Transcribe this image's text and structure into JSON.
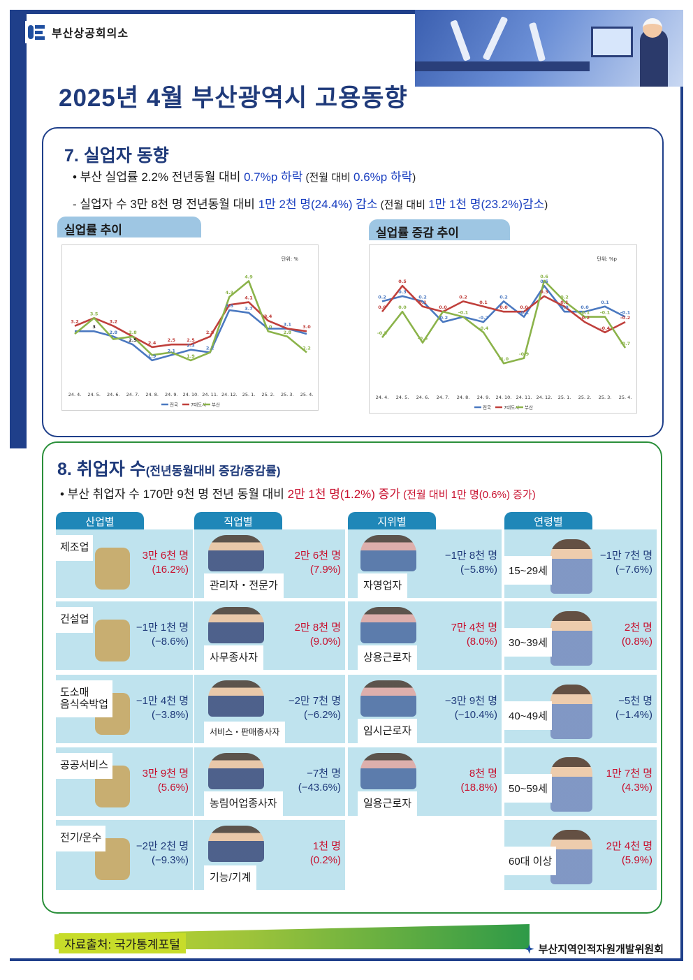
{
  "header": {
    "org": "부산상공회의소",
    "title": "2025년 4월 부산광역시 고용동향"
  },
  "section7": {
    "title": "7. 실업자 동향",
    "line1": {
      "a": "• 부산 실업률 2.2% 전년동월 대비 ",
      "b": "0.7%p 하락",
      "c": " (전월 대비 ",
      "d": "0.6%p 하락",
      "e": ")"
    },
    "line2": {
      "a": "- 실업자 수 3만 8천 명 전년동월 대비 ",
      "b": "1만 2천 명(24.4%) 감소",
      "c": " (전월 대비 ",
      "d": "1만 1천 명(23.2%)감소",
      "e": ")"
    },
    "chart1_tab": "실업률 추이",
    "chart2_tab": "실업률 증감 추이"
  },
  "chart_data": [
    {
      "type": "line",
      "categories": [
        "24. 4.",
        "24. 5.",
        "24. 6.",
        "24. 7.",
        "24. 8.",
        "24. 9.",
        "24. 10.",
        "24. 11.",
        "24. 12.",
        "25. 1.",
        "25. 2.",
        "25. 3.",
        "25. 4."
      ],
      "unit": "단위: %",
      "series": [
        {
          "name": "전국",
          "color": "#4a78c0",
          "values": [
            3.0,
            3.0,
            2.8,
            2.5,
            1.9,
            2.1,
            2.3,
            2.2,
            3.8,
            3.7,
            3.1,
            3.1,
            2.9
          ]
        },
        {
          "name": "7대도시",
          "color": "#c0403c",
          "values": [
            3.2,
            3.5,
            3.2,
            2.8,
            2.4,
            2.5,
            2.5,
            2.8,
            4.0,
            4.1,
            3.4,
            3.1,
            3.0
          ]
        },
        {
          "name": "부산",
          "color": "#8bb34a",
          "values": [
            2.9,
            3.5,
            2.7,
            2.8,
            2.1,
            2.2,
            1.9,
            2.2,
            4.3,
            4.9,
            3.0,
            2.8,
            2.2
          ]
        }
      ],
      "labels": [
        {
          "i": 0,
          "v": 3.2,
          "t": "3.2",
          "c": "#c0403c"
        },
        {
          "i": 1,
          "v": 3.5,
          "t": "3.5",
          "c": "#8bb34a"
        },
        {
          "i": 1,
          "v": 3.0,
          "t": "3",
          "c": "#222"
        },
        {
          "i": 2,
          "v": 3.2,
          "t": "3.2",
          "c": "#c0403c"
        },
        {
          "i": 2,
          "v": 2.8,
          "t": "2.8",
          "c": "#4a78c0"
        },
        {
          "i": 3,
          "v": 2.8,
          "t": "2.8",
          "c": "#8bb34a"
        },
        {
          "i": 3,
          "v": 2.5,
          "t": "2.5",
          "c": "#222"
        },
        {
          "i": 4,
          "v": 2.4,
          "t": "2.4",
          "c": "#c0403c"
        },
        {
          "i": 4,
          "v": 1.9,
          "t": "1.9",
          "c": "#4a78c0"
        },
        {
          "i": 5,
          "v": 2.5,
          "t": "2.5",
          "c": "#c0403c"
        },
        {
          "i": 5,
          "v": 2.1,
          "t": "2.1",
          "c": "#4a78c0"
        },
        {
          "i": 6,
          "v": 2.5,
          "t": "2.5",
          "c": "#c0403c"
        },
        {
          "i": 6,
          "v": 2.3,
          "t": "2.3",
          "c": "#4a78c0"
        },
        {
          "i": 6,
          "v": 1.9,
          "t": "1.9",
          "c": "#8bb34a"
        },
        {
          "i": 7,
          "v": 2.8,
          "t": "2.8",
          "c": "#c0403c"
        },
        {
          "i": 7,
          "v": 2.2,
          "t": "2.2",
          "c": "#4a78c0"
        },
        {
          "i": 8,
          "v": 4.3,
          "t": "4.3",
          "c": "#8bb34a"
        },
        {
          "i": 8,
          "v": 3.8,
          "t": "3.8",
          "c": "#4a78c0"
        },
        {
          "i": 9,
          "v": 4.9,
          "t": "4.9",
          "c": "#8bb34a"
        },
        {
          "i": 9,
          "v": 4.1,
          "t": "4.1",
          "c": "#c0403c"
        },
        {
          "i": 9,
          "v": 3.7,
          "t": "3.7",
          "c": "#4a78c0"
        },
        {
          "i": 10,
          "v": 3.4,
          "t": "3.4",
          "c": "#c0403c"
        },
        {
          "i": 10,
          "v": 3.0,
          "t": "3.0",
          "c": "#8bb34a"
        },
        {
          "i": 11,
          "v": 3.1,
          "t": "3.1",
          "c": "#4a78c0"
        },
        {
          "i": 11,
          "v": 2.8,
          "t": "2.8",
          "c": "#8bb34a"
        },
        {
          "i": 12,
          "v": 3.0,
          "t": "3.0",
          "c": "#c0403c"
        },
        {
          "i": 12,
          "v": 2.2,
          "t": "2.2",
          "c": "#8bb34a"
        }
      ],
      "ylim": [
        1.5,
        5.2
      ],
      "legend": "bottom",
      "grid": false
    },
    {
      "type": "line",
      "categories": [
        "24. 4.",
        "24. 5.",
        "24. 6.",
        "24. 7.",
        "24. 8.",
        "24. 9.",
        "24. 10.",
        "24. 11.",
        "24. 12.",
        "25. 1.",
        "25. 2.",
        "25. 3.",
        "25. 4."
      ],
      "unit": "단위: %p",
      "series": [
        {
          "name": "전국",
          "color": "#4a78c0",
          "values": [
            0.2,
            0.3,
            0.2,
            -0.2,
            -0.1,
            -0.2,
            0.2,
            -0.1,
            0.5,
            0.0,
            0.0,
            0.1,
            -0.1
          ]
        },
        {
          "name": "7대도시",
          "color": "#c0403c",
          "values": [
            0.0,
            0.5,
            0.1,
            0.0,
            0.2,
            0.1,
            0.0,
            0.0,
            0.3,
            0.1,
            -0.2,
            -0.4,
            -0.2
          ]
        },
        {
          "name": "부산",
          "color": "#8bb34a",
          "values": [
            -0.5,
            0.0,
            -0.6,
            0.0,
            -0.1,
            -0.4,
            -1.0,
            -0.9,
            0.6,
            0.2,
            -0.1,
            -0.1,
            -0.7
          ]
        }
      ],
      "labels": [
        {
          "i": 0,
          "v": 0.2,
          "t": "0.2",
          "c": "#4a78c0"
        },
        {
          "i": 0,
          "v": 0.0,
          "t": "0.0",
          "c": "#c0403c"
        },
        {
          "i": 0,
          "v": -0.5,
          "t": "-0.5",
          "c": "#8bb34a"
        },
        {
          "i": 1,
          "v": 0.5,
          "t": "0.5",
          "c": "#c0403c"
        },
        {
          "i": 1,
          "v": 0.3,
          "t": "0.3",
          "c": "#4a78c0"
        },
        {
          "i": 1,
          "v": 0.0,
          "t": "0.0",
          "c": "#8bb34a"
        },
        {
          "i": 2,
          "v": 0.2,
          "t": "0.2",
          "c": "#4a78c0"
        },
        {
          "i": 2,
          "v": 0.1,
          "t": "0.1",
          "c": "#c0403c"
        },
        {
          "i": 2,
          "v": -0.6,
          "t": "-0.6",
          "c": "#8bb34a"
        },
        {
          "i": 3,
          "v": 0.0,
          "t": "0.0",
          "c": "#c0403c"
        },
        {
          "i": 3,
          "v": -0.2,
          "t": "-0.2",
          "c": "#4a78c0"
        },
        {
          "i": 4,
          "v": 0.2,
          "t": "0.2",
          "c": "#c0403c"
        },
        {
          "i": 4,
          "v": -0.1,
          "t": "-0.1",
          "c": "#8bb34a"
        },
        {
          "i": 5,
          "v": 0.1,
          "t": "0.1",
          "c": "#c0403c"
        },
        {
          "i": 5,
          "v": -0.2,
          "t": "-0.2",
          "c": "#4a78c0"
        },
        {
          "i": 5,
          "v": -0.4,
          "t": "-0.4",
          "c": "#8bb34a"
        },
        {
          "i": 6,
          "v": 0.2,
          "t": "0.2",
          "c": "#4a78c0"
        },
        {
          "i": 6,
          "v": 0.0,
          "t": "0.0",
          "c": "#c0403c"
        },
        {
          "i": 6,
          "v": -1.0,
          "t": "-1.0",
          "c": "#8bb34a"
        },
        {
          "i": 7,
          "v": 0.0,
          "t": "0.0",
          "c": "#c0403c"
        },
        {
          "i": 7,
          "v": -0.1,
          "t": "-0.1",
          "c": "#4a78c0"
        },
        {
          "i": 7,
          "v": -0.9,
          "t": "-0.9",
          "c": "#8bb34a"
        },
        {
          "i": 8,
          "v": 0.6,
          "t": "0.6",
          "c": "#8bb34a"
        },
        {
          "i": 8,
          "v": 0.5,
          "t": "0.5",
          "c": "#4a78c0"
        },
        {
          "i": 8,
          "v": 0.3,
          "t": "0.3",
          "c": "#c0403c"
        },
        {
          "i": 9,
          "v": 0.2,
          "t": "0.2",
          "c": "#8bb34a"
        },
        {
          "i": 9,
          "v": 0.1,
          "t": "0.1",
          "c": "#c0403c"
        },
        {
          "i": 9,
          "v": 0.0,
          "t": "0.0",
          "c": "#4a78c0"
        },
        {
          "i": 10,
          "v": 0.0,
          "t": "0.0",
          "c": "#4a78c0"
        },
        {
          "i": 10,
          "v": -0.1,
          "t": "-0.1",
          "c": "#8bb34a"
        },
        {
          "i": 10,
          "v": -0.2,
          "t": "-0.2",
          "c": "#c0403c"
        },
        {
          "i": 11,
          "v": 0.1,
          "t": "0.1",
          "c": "#4a78c0"
        },
        {
          "i": 11,
          "v": -0.1,
          "t": "-0.1",
          "c": "#8bb34a"
        },
        {
          "i": 11,
          "v": -0.4,
          "t": "-0.4",
          "c": "#c0403c"
        },
        {
          "i": 12,
          "v": -0.1,
          "t": "-0.1",
          "c": "#4a78c0"
        },
        {
          "i": 12,
          "v": -0.2,
          "t": "-0.2",
          "c": "#c0403c"
        },
        {
          "i": 12,
          "v": -0.7,
          "t": "-0.7",
          "c": "#8bb34a"
        }
      ],
      "ylim": [
        -1.2,
        0.8
      ],
      "legend": "bottom",
      "grid": false
    }
  ],
  "section8": {
    "title": "8. 취업자 수",
    "title_sub": "(전년동월대비 증감/증감률)",
    "line1": {
      "a": "• 부산 취업자 수 170만 9천 명 전년 동월 대비 ",
      "b": "2만 1천 명(1.2%) 증가",
      "c": " (전월 대비 1만 명(0.6%) 증가)"
    },
    "columns": [
      "산업별",
      "직업별",
      "지위별",
      "연령별"
    ],
    "industry": [
      {
        "label": "제조업",
        "v1": "3만 6천 명",
        "v2": "(16.2%)",
        "tone": "red"
      },
      {
        "label": "건설업",
        "v1": "−1만 1천 명",
        "v2": "(−8.6%)",
        "tone": "blue"
      },
      {
        "label": "도소매\n음식숙박업",
        "v1": "−1만 4천 명",
        "v2": "(−3.8%)",
        "tone": "blue"
      },
      {
        "label": "공공서비스",
        "v1": "3만 9천 명",
        "v2": "(5.6%)",
        "tone": "red"
      },
      {
        "label": "전기/운수",
        "v1": "−2만 2천 명",
        "v2": "(−9.3%)",
        "tone": "blue"
      }
    ],
    "occupation": [
      {
        "label": "관리자・전문가",
        "v1": "2만 6천 명",
        "v2": "(7.9%)",
        "tone": "red"
      },
      {
        "label": "사무종사자",
        "v1": "2만 8천 명",
        "v2": "(9.0%)",
        "tone": "red"
      },
      {
        "label": "서비스・판매종사자",
        "v1": "−2만 7천 명",
        "v2": "(−6.2%)",
        "tone": "blue"
      },
      {
        "label": "농림어업종사자",
        "v1": "−7천 명",
        "v2": "(−43.6%)",
        "tone": "blue"
      },
      {
        "label": "기능/기계",
        "v1": "1천 명",
        "v2": "(0.2%)",
        "tone": "red"
      }
    ],
    "status": [
      {
        "label": "자영업자",
        "v1": "−1만 8천 명",
        "v2": "(−5.8%)",
        "tone": "blue"
      },
      {
        "label": "상용근로자",
        "v1": "7만 4천 명",
        "v2": "(8.0%)",
        "tone": "red"
      },
      {
        "label": "임시근로자",
        "v1": "−3만 9천 명",
        "v2": "(−10.4%)",
        "tone": "blue"
      },
      {
        "label": "일용근로자",
        "v1": "8천 명",
        "v2": "(18.8%)",
        "tone": "red"
      }
    ],
    "age": [
      {
        "label": "15~29세",
        "v1": "−1만 7천 명",
        "v2": "(−7.6%)",
        "tone": "blue"
      },
      {
        "label": "30~39세",
        "v1": "2천 명",
        "v2": "(0.8%)",
        "tone": "red"
      },
      {
        "label": "40~49세",
        "v1": "−5천 명",
        "v2": "(−1.4%)",
        "tone": "blue"
      },
      {
        "label": "50~59세",
        "v1": "1만 7천 명",
        "v2": "(4.3%)",
        "tone": "red"
      },
      {
        "label": "60대 이상",
        "v1": "2만 4천 명",
        "v2": "(5.9%)",
        "tone": "red"
      }
    ]
  },
  "footer": {
    "source": "자료출처: 국가통계포털",
    "org": "부산지역인적자원개발위원회"
  },
  "colors": {
    "navy": "#1f3f8a",
    "green": "#2a8f3a",
    "blue_text": "#1a3fc0",
    "red_text": "#c8102e",
    "cell_bg": "#bfe3ee",
    "tab_bg": "#1f87b8"
  }
}
